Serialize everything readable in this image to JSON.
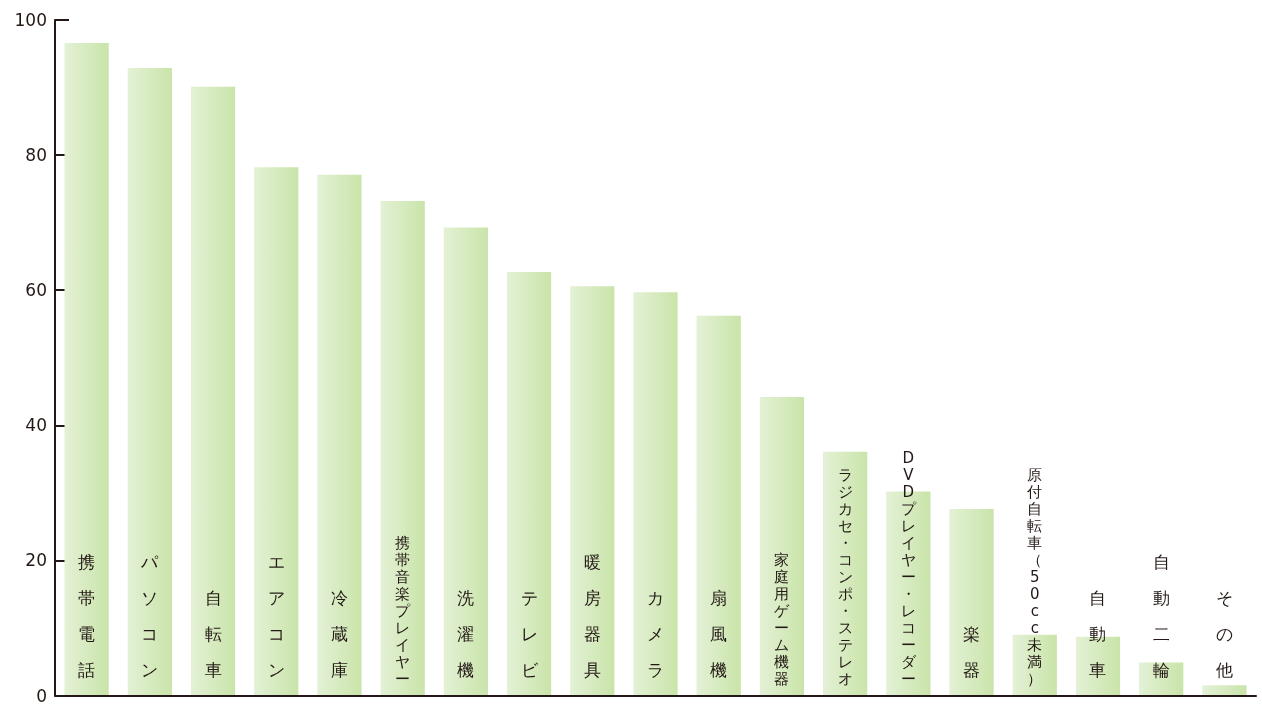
{
  "chart_data": {
    "type": "bar",
    "categories": [
      "携帯電話",
      "パソコン",
      "自転車",
      "エアコン",
      "冷蔵庫",
      "携帯音楽プレイヤー",
      "洗濯機",
      "テレビ",
      "暖房器具",
      "カメラ",
      "扇風機",
      "家庭用ゲーム機器",
      "ラジカセ・コンポ・ステレオ",
      "DVDプレイヤー・レコーダー",
      "楽器",
      "原付自転車（50cc未満）",
      "自動車",
      "自動二輪",
      "その他"
    ],
    "values": [
      96.6,
      92.9,
      90.1,
      78.2,
      77.1,
      73.2,
      69.3,
      62.7,
      60.6,
      59.7,
      56.2,
      44.2,
      36.1,
      30.2,
      27.6,
      9.0,
      8.7,
      4.9,
      1.5
    ],
    "color": "#c9e4a9",
    "ylim": [
      0,
      100
    ],
    "yticks": [
      0,
      20,
      40,
      60,
      80,
      100
    ],
    "grid": false
  }
}
